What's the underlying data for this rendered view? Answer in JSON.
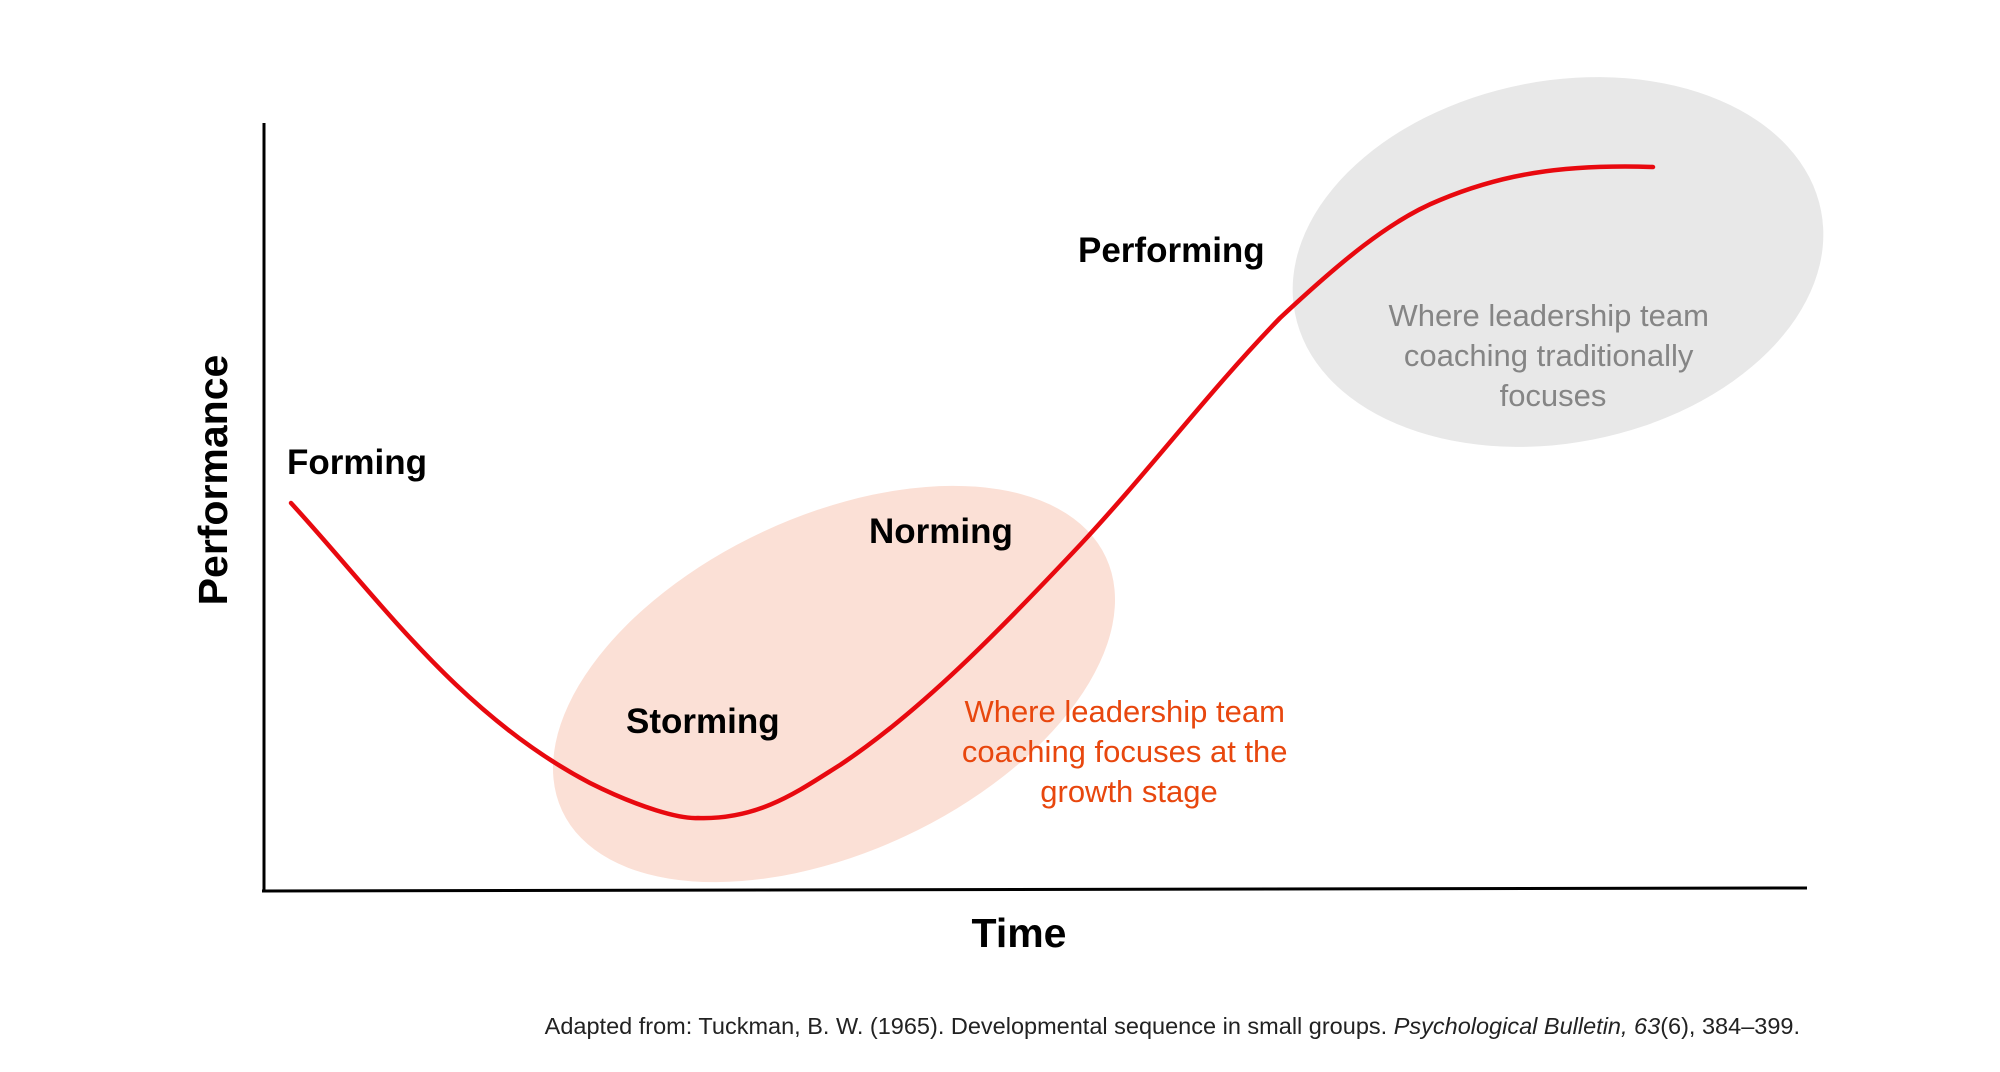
{
  "axes": {
    "x_label": "Time",
    "y_label": "Performance"
  },
  "stages": {
    "forming": "Forming",
    "storming": "Storming",
    "norming": "Norming",
    "performing": "Performing"
  },
  "zones": {
    "growth": {
      "lines": [
        "Where leadership team",
        "coaching focuses at the",
        "growth stage"
      ],
      "text_color": "#e8470e",
      "fill_color": "#fbe0d6"
    },
    "traditional": {
      "lines": [
        "Where leadership team",
        "coaching traditionally",
        "focuses"
      ],
      "text_color": "#858585",
      "fill_color": "#e8e8e8"
    }
  },
  "curve_color": "#e8090f",
  "citation": {
    "prefix": "Adapted from: Tuckman, B. W. (1965). Developmental sequence in small groups. ",
    "journal": "Psychological Bulletin, 63",
    "suffix": "(6), 384–399."
  }
}
